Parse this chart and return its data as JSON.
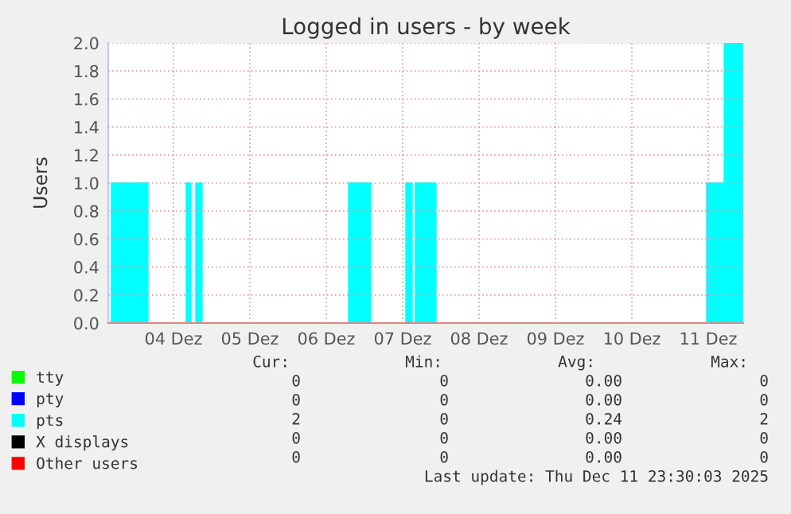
{
  "chart_data": {
    "type": "area",
    "title": "Logged in users - by week",
    "ylabel": "Users",
    "xlim": [
      "2025-12-03T15:30",
      "2025-12-11T23:00"
    ],
    "xticks": [
      {
        "value": "2025-12-04T12:00",
        "label": "04 Dez"
      },
      {
        "value": "2025-12-05T12:00",
        "label": "05 Dez"
      },
      {
        "value": "2025-12-06T12:00",
        "label": "06 Dez"
      },
      {
        "value": "2025-12-07T12:00",
        "label": "07 Dez"
      },
      {
        "value": "2025-12-08T12:00",
        "label": "08 Dez"
      },
      {
        "value": "2025-12-09T12:00",
        "label": "09 Dez"
      },
      {
        "value": "2025-12-10T12:00",
        "label": "10 Dez"
      },
      {
        "value": "2025-12-11T12:00",
        "label": "11 Dez"
      }
    ],
    "ylim": [
      0,
      2
    ],
    "yticks": [
      {
        "value": 0,
        "label": "0.0"
      },
      {
        "value": 0.2,
        "label": "0.2"
      },
      {
        "value": 0.4,
        "label": "0.4"
      },
      {
        "value": 0.6,
        "label": "0.6"
      },
      {
        "value": 0.8,
        "label": "0.8"
      },
      {
        "value": 1,
        "label": "1.0"
      },
      {
        "value": 1.2,
        "label": "1.2"
      },
      {
        "value": 1.4,
        "label": "1.4"
      },
      {
        "value": 1.6,
        "label": "1.6"
      },
      {
        "value": 1.8,
        "label": "1.8"
      },
      {
        "value": 2,
        "label": "2.0"
      }
    ],
    "grid": true,
    "legend": "bottom left",
    "series": [
      {
        "name": "tty",
        "type": "line",
        "color": "#00ff00"
      },
      {
        "name": "pty",
        "type": "line",
        "color": "#0000ff"
      },
      {
        "name": "pts",
        "color": "#00ffff",
        "x": [
          "2025-12-03T15:30",
          "2025-12-03T16:30",
          "2025-12-03T16:30",
          "2025-12-04T04:00",
          "2025-12-04T04:00",
          "2025-12-04T16:00",
          "2025-12-04T16:00",
          "2025-12-04T17:30",
          "2025-12-04T17:30",
          "2025-12-04T19:00",
          "2025-12-04T19:00",
          "2025-12-04T21:00",
          "2025-12-04T21:00",
          "2025-12-06T19:00",
          "2025-12-06T19:00",
          "2025-12-07T02:00",
          "2025-12-07T02:00",
          "2025-12-07T13:00",
          "2025-12-07T13:00",
          "2025-12-07T15:00",
          "2025-12-07T15:00",
          "2025-12-07T16:00",
          "2025-12-07T16:00",
          "2025-12-07T22:30",
          "2025-12-07T22:30",
          "2025-12-11T11:30",
          "2025-12-11T11:30",
          "2025-12-11T17:00",
          "2025-12-11T17:00",
          "2025-12-11T23:00"
        ],
        "values": [
          0,
          0,
          1,
          1,
          0,
          0,
          1,
          1,
          0,
          0,
          1,
          1,
          0,
          0,
          1,
          1,
          0,
          0,
          1,
          1,
          0,
          0,
          1,
          1,
          0,
          0,
          1,
          1,
          2,
          2
        ]
      },
      {
        "name": "X displays",
        "type": "line",
        "color": "#000000"
      },
      {
        "name": "Other users",
        "type": "line",
        "color": "#ff0000"
      }
    ],
    "annotations": [
      "Cur:",
      "Min:",
      "Avg:",
      "Max:",
      "0",
      "0",
      "0.00",
      "0",
      "0",
      "0",
      "0.00",
      "0",
      "2",
      "0",
      "0.24",
      "2",
      "0",
      "0",
      "0.00",
      "0",
      "0",
      "0",
      "0.00",
      "0",
      "Last update: Thu Dec 11 23:30:03 2025"
    ]
  }
}
